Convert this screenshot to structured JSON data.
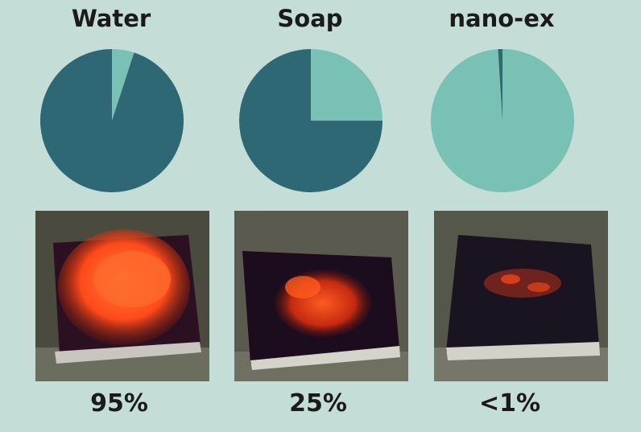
{
  "chart_data": {
    "type": "pie",
    "colors": {
      "dark": "#2e6874",
      "light": "#79c1b4"
    },
    "charts": [
      {
        "title": "Water",
        "value_label": "95%",
        "slices": [
          95,
          5
        ]
      },
      {
        "title": "Soap",
        "value_label": "25%",
        "slices": [
          75,
          25
        ]
      },
      {
        "title": "nano-ex",
        "value_label": "<1%",
        "slices": [
          1,
          99
        ]
      }
    ]
  }
}
